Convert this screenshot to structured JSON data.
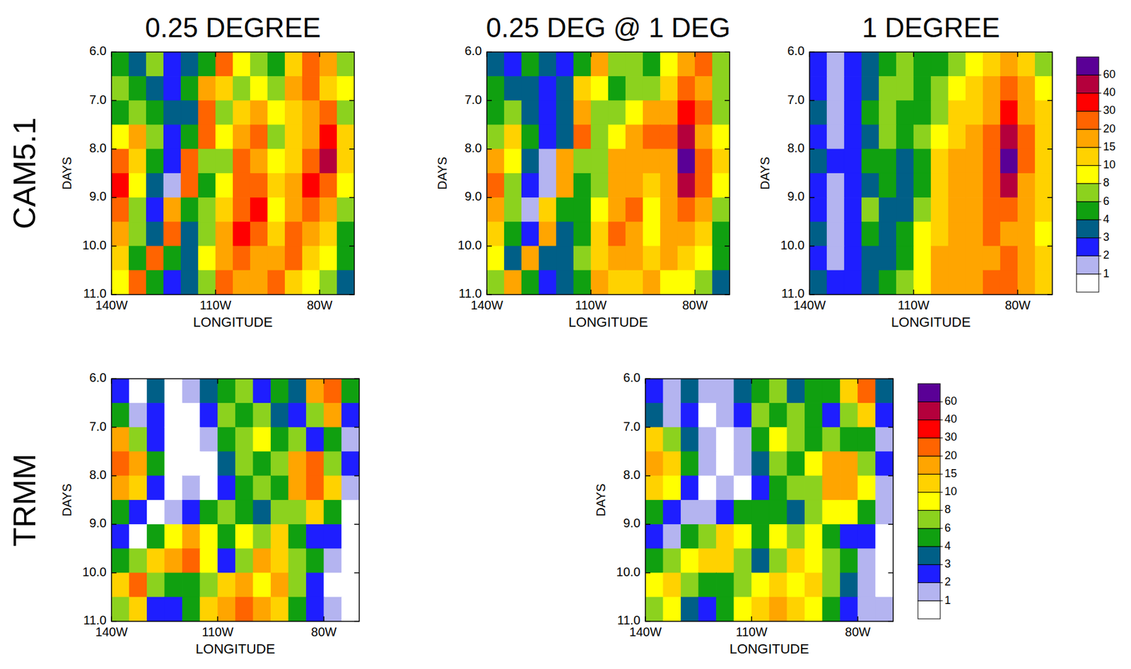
{
  "figure": {
    "column_titles": [
      "0.25 DEGREE",
      "0.25 DEG @ 1 DEG",
      "1 DEGREE"
    ],
    "row_labels": [
      "CAM5.1",
      "TRMM"
    ],
    "colorbars": [
      {
        "ticks": [
          1,
          2,
          3,
          4,
          6,
          8,
          10,
          15,
          20,
          30,
          40,
          60
        ],
        "colors": [
          "#ffffff",
          "#b4b4f0",
          "#1e1eff",
          "#005f87",
          "#10a010",
          "#8cd21e",
          "#ffff00",
          "#ffd200",
          "#ffa500",
          "#ff6400",
          "#ff0000",
          "#b4003c",
          "#5a0096"
        ]
      },
      {
        "ticks": [
          1,
          2,
          3,
          4,
          6,
          8,
          10,
          15,
          20,
          30,
          40,
          60
        ],
        "colors": [
          "#ffffff",
          "#b4b4f0",
          "#1e1eff",
          "#005f87",
          "#10a010",
          "#8cd21e",
          "#ffff00",
          "#ffd200",
          "#ffa500",
          "#ff6400",
          "#ff0000",
          "#b4003c",
          "#5a0096"
        ]
      }
    ]
  },
  "chart_data": [
    {
      "type": "heatmap",
      "xlabel": "LONGITUDE",
      "ylabel": "DAYS",
      "x": [
        -137.5,
        -132.5,
        -127.5,
        -122.5,
        -117.5,
        -112.5,
        -107.5,
        -102.5,
        -97.5,
        -92.5,
        -87.5,
        -82.5,
        -77.5,
        -72.5
      ],
      "y": [
        6.25,
        6.75,
        7.25,
        7.75,
        8.25,
        8.75,
        9.25,
        9.75,
        10.25,
        10.75
      ],
      "xlim": [
        -140,
        -70
      ],
      "ylim": [
        6,
        11
      ],
      "xticks": [
        {
          "value": -140,
          "label": "140W"
        },
        {
          "value": -110,
          "label": "110W"
        },
        {
          "value": -80,
          "label": "80W"
        }
      ],
      "yticks": [
        {
          "value": 6,
          "label": "6.0"
        },
        {
          "value": 7,
          "label": "7.0"
        },
        {
          "value": 8,
          "label": "8.0"
        },
        {
          "value": 9,
          "label": "9.0"
        },
        {
          "value": 10,
          "label": "10.0"
        },
        {
          "value": 11,
          "label": "11.0"
        }
      ],
      "cells": [
        [
          4,
          3,
          6,
          2,
          3,
          4,
          20,
          8,
          6,
          4,
          10,
          20,
          15,
          6
        ],
        [
          6,
          4,
          3,
          2,
          4,
          15,
          10,
          6,
          8,
          6,
          15,
          20,
          10,
          8
        ],
        [
          4,
          6,
          4,
          3,
          3,
          20,
          6,
          10,
          15,
          8,
          10,
          15,
          20,
          6
        ],
        [
          8,
          15,
          6,
          2,
          4,
          20,
          8,
          15,
          20,
          6,
          10,
          15,
          30,
          10
        ],
        [
          20,
          10,
          4,
          2,
          20,
          6,
          6,
          20,
          15,
          8,
          10,
          20,
          40,
          10
        ],
        [
          30,
          8,
          3,
          1,
          20,
          4,
          8,
          20,
          20,
          10,
          15,
          30,
          20,
          8
        ],
        [
          20,
          6,
          2,
          15,
          4,
          6,
          10,
          20,
          30,
          8,
          15,
          20,
          15,
          6
        ],
        [
          15,
          6,
          3,
          20,
          3,
          6,
          15,
          30,
          20,
          10,
          20,
          15,
          10,
          4
        ],
        [
          10,
          4,
          20,
          4,
          3,
          8,
          15,
          20,
          15,
          15,
          20,
          10,
          8,
          4
        ],
        [
          8,
          20,
          4,
          2,
          3,
          6,
          20,
          15,
          15,
          20,
          10,
          8,
          6,
          3
        ]
      ]
    },
    {
      "type": "heatmap",
      "xlabel": "LONGITUDE",
      "ylabel": "DAYS",
      "x": [
        -137.5,
        -132.5,
        -127.5,
        -122.5,
        -117.5,
        -112.5,
        -107.5,
        -102.5,
        -97.5,
        -92.5,
        -87.5,
        -82.5,
        -77.5,
        -72.5
      ],
      "y": [
        6.25,
        6.75,
        7.25,
        7.75,
        8.25,
        8.75,
        9.25,
        9.75,
        10.25,
        10.75
      ],
      "xlim": [
        -140,
        -70
      ],
      "ylim": [
        6,
        11
      ],
      "xticks": [
        {
          "value": -140,
          "label": "140W"
        },
        {
          "value": -110,
          "label": "110W"
        },
        {
          "value": -80,
          "label": "80W"
        }
      ],
      "yticks": [
        {
          "value": 6,
          "label": "6.0"
        },
        {
          "value": 7,
          "label": "7.0"
        },
        {
          "value": 8,
          "label": "8.0"
        },
        {
          "value": 9,
          "label": "9.0"
        },
        {
          "value": 10,
          "label": "10.0"
        },
        {
          "value": 11,
          "label": "11.0"
        }
      ],
      "cells": [
        [
          3,
          2,
          4,
          3,
          2,
          4,
          15,
          6,
          6,
          4,
          8,
          15,
          20,
          6
        ],
        [
          4,
          3,
          3,
          2,
          3,
          10,
          8,
          4,
          6,
          6,
          10,
          20,
          15,
          6
        ],
        [
          4,
          6,
          3,
          2,
          3,
          15,
          6,
          6,
          8,
          15,
          15,
          30,
          20,
          6
        ],
        [
          6,
          10,
          4,
          2,
          3,
          20,
          6,
          8,
          15,
          20,
          20,
          40,
          15,
          8
        ],
        [
          15,
          8,
          3,
          1,
          15,
          6,
          6,
          15,
          15,
          15,
          15,
          60,
          20,
          10
        ],
        [
          20,
          6,
          2,
          1,
          15,
          4,
          6,
          15,
          15,
          10,
          15,
          40,
          20,
          8
        ],
        [
          15,
          6,
          1,
          10,
          4,
          4,
          8,
          15,
          20,
          8,
          15,
          20,
          15,
          6
        ],
        [
          10,
          4,
          2,
          15,
          3,
          4,
          10,
          20,
          15,
          8,
          15,
          15,
          10,
          4
        ],
        [
          8,
          3,
          15,
          3,
          3,
          6,
          10,
          15,
          15,
          10,
          15,
          10,
          8,
          4
        ],
        [
          6,
          15,
          4,
          2,
          3,
          4,
          15,
          10,
          10,
          15,
          8,
          8,
          6,
          3
        ]
      ]
    },
    {
      "type": "heatmap",
      "xlabel": "LONGITUDE",
      "ylabel": "DAYS",
      "x": [
        -137.5,
        -132.5,
        -127.5,
        -122.5,
        -117.5,
        -112.5,
        -107.5,
        -102.5,
        -97.5,
        -92.5,
        -87.5,
        -82.5,
        -77.5,
        -72.5
      ],
      "y": [
        6.25,
        6.75,
        7.25,
        7.75,
        8.25,
        8.75,
        9.25,
        9.75,
        10.25,
        10.75
      ],
      "xlim": [
        -140,
        -70
      ],
      "ylim": [
        6,
        11
      ],
      "xticks": [
        {
          "value": -140,
          "label": "140W"
        },
        {
          "value": -110,
          "label": "110W"
        },
        {
          "value": -80,
          "label": "80W"
        }
      ],
      "yticks": [
        {
          "value": 6,
          "label": "6.0"
        },
        {
          "value": 7,
          "label": "7.0"
        },
        {
          "value": 8,
          "label": "8.0"
        },
        {
          "value": 9,
          "label": "9.0"
        },
        {
          "value": 10,
          "label": "10.0"
        },
        {
          "value": 11,
          "label": "11.0"
        }
      ],
      "cells": [
        [
          2,
          1,
          2,
          3,
          4,
          6,
          4,
          4,
          6,
          8,
          10,
          15,
          10,
          6
        ],
        [
          2,
          1,
          2,
          3,
          6,
          6,
          4,
          6,
          8,
          10,
          15,
          20,
          15,
          8
        ],
        [
          3,
          1,
          2,
          4,
          6,
          4,
          4,
          6,
          10,
          10,
          15,
          30,
          15,
          10
        ],
        [
          2,
          1,
          2,
          3,
          6,
          4,
          6,
          8,
          10,
          15,
          20,
          40,
          20,
          10
        ],
        [
          3,
          2,
          2,
          4,
          4,
          3,
          4,
          10,
          15,
          15,
          20,
          60,
          20,
          10
        ],
        [
          2,
          1,
          2,
          3,
          4,
          3,
          4,
          10,
          15,
          15,
          20,
          40,
          15,
          10
        ],
        [
          2,
          1,
          2,
          6,
          3,
          3,
          6,
          10,
          15,
          15,
          20,
          20,
          15,
          10
        ],
        [
          3,
          1,
          2,
          4,
          3,
          4,
          8,
          10,
          15,
          15,
          20,
          15,
          15,
          8
        ],
        [
          2,
          1,
          2,
          3,
          3,
          4,
          8,
          15,
          15,
          15,
          15,
          20,
          15,
          10
        ],
        [
          3,
          2,
          2,
          3,
          4,
          6,
          8,
          15,
          15,
          15,
          20,
          20,
          15,
          10
        ]
      ]
    },
    {
      "type": "heatmap",
      "xlabel": "LONGITUDE",
      "ylabel": "DAYS",
      "x": [
        -137.5,
        -132.5,
        -127.5,
        -122.5,
        -117.5,
        -112.5,
        -107.5,
        -102.5,
        -97.5,
        -92.5,
        -87.5,
        -82.5,
        -77.5,
        -72.5
      ],
      "y": [
        6.25,
        6.75,
        7.25,
        7.75,
        8.25,
        8.75,
        9.25,
        9.75,
        10.25,
        10.75
      ],
      "xlim": [
        -140,
        -70
      ],
      "ylim": [
        6,
        11
      ],
      "xticks": [
        {
          "value": -140,
          "label": "140W"
        },
        {
          "value": -110,
          "label": "110W"
        },
        {
          "value": -80,
          "label": "80W"
        }
      ],
      "yticks": [
        {
          "value": 6,
          "label": "6.0"
        },
        {
          "value": 7,
          "label": "7.0"
        },
        {
          "value": 8,
          "label": "8.0"
        },
        {
          "value": 9,
          "label": "9.0"
        },
        {
          "value": 10,
          "label": "10.0"
        },
        {
          "value": 11,
          "label": "11.0"
        }
      ],
      "cells": [
        [
          2,
          0,
          3,
          0,
          1,
          3,
          4,
          6,
          2,
          4,
          3,
          15,
          20,
          4
        ],
        [
          4,
          1,
          2,
          0,
          0,
          2,
          6,
          4,
          6,
          3,
          2,
          6,
          15,
          2
        ],
        [
          15,
          6,
          2,
          0,
          0,
          1,
          4,
          6,
          8,
          4,
          6,
          2,
          4,
          1
        ],
        [
          20,
          15,
          4,
          0,
          0,
          0,
          3,
          6,
          4,
          6,
          15,
          20,
          6,
          2
        ],
        [
          15,
          10,
          2,
          0,
          1,
          0,
          2,
          4,
          6,
          4,
          15,
          20,
          10,
          1
        ],
        [
          4,
          2,
          0,
          1,
          2,
          4,
          6,
          4,
          3,
          6,
          6,
          10,
          4,
          0
        ],
        [
          2,
          0,
          4,
          8,
          15,
          8,
          4,
          8,
          6,
          10,
          4,
          2,
          2,
          0
        ],
        [
          4,
          6,
          10,
          15,
          20,
          8,
          2,
          6,
          15,
          10,
          6,
          4,
          1,
          0
        ],
        [
          10,
          20,
          6,
          4,
          4,
          6,
          10,
          15,
          8,
          15,
          6,
          2,
          0,
          0
        ],
        [
          6,
          10,
          2,
          2,
          4,
          10,
          15,
          20,
          15,
          10,
          4,
          2,
          1,
          0
        ]
      ]
    },
    {
      "type": "heatmap",
      "xlabel": "LONGITUDE",
      "ylabel": "DAYS",
      "x": [
        -137.5,
        -132.5,
        -127.5,
        -122.5,
        -117.5,
        -112.5,
        -107.5,
        -102.5,
        -97.5,
        -92.5,
        -87.5,
        -82.5,
        -77.5,
        -72.5
      ],
      "y": [
        6.25,
        6.75,
        7.25,
        7.75,
        8.25,
        8.75,
        9.25,
        9.75,
        10.25,
        10.75
      ],
      "xlim": [
        -140,
        -70
      ],
      "ylim": [
        6,
        11
      ],
      "xticks": [
        {
          "value": -140,
          "label": "140W"
        },
        {
          "value": -110,
          "label": "110W"
        },
        {
          "value": -80,
          "label": "80W"
        }
      ],
      "yticks": [
        {
          "value": 6,
          "label": "6.0"
        },
        {
          "value": 7,
          "label": "7.0"
        },
        {
          "value": 8,
          "label": "8.0"
        },
        {
          "value": 9,
          "label": "9.0"
        },
        {
          "value": 10,
          "label": "10.0"
        },
        {
          "value": 11,
          "label": "11.0"
        }
      ],
      "cells": [
        [
          2,
          1,
          3,
          1,
          1,
          3,
          4,
          6,
          3,
          4,
          4,
          10,
          20,
          3
        ],
        [
          3,
          1,
          2,
          0,
          1,
          2,
          6,
          4,
          6,
          4,
          2,
          6,
          10,
          2
        ],
        [
          10,
          6,
          3,
          1,
          0,
          1,
          4,
          8,
          6,
          4,
          6,
          4,
          4,
          1
        ],
        [
          15,
          10,
          4,
          1,
          0,
          1,
          3,
          6,
          4,
          8,
          15,
          15,
          6,
          2
        ],
        [
          10,
          8,
          2,
          0,
          1,
          0,
          2,
          4,
          6,
          6,
          15,
          15,
          8,
          1
        ],
        [
          4,
          2,
          1,
          1,
          2,
          4,
          4,
          4,
          3,
          6,
          8,
          8,
          4,
          1
        ],
        [
          2,
          1,
          4,
          6,
          10,
          8,
          4,
          8,
          6,
          8,
          4,
          2,
          2,
          0
        ],
        [
          4,
          6,
          8,
          10,
          10,
          6,
          3,
          6,
          10,
          8,
          6,
          4,
          1,
          0
        ],
        [
          8,
          10,
          6,
          4,
          4,
          6,
          8,
          10,
          8,
          10,
          6,
          3,
          1,
          0
        ],
        [
          6,
          8,
          3,
          2,
          4,
          8,
          10,
          15,
          10,
          8,
          4,
          2,
          1,
          1
        ]
      ]
    }
  ]
}
